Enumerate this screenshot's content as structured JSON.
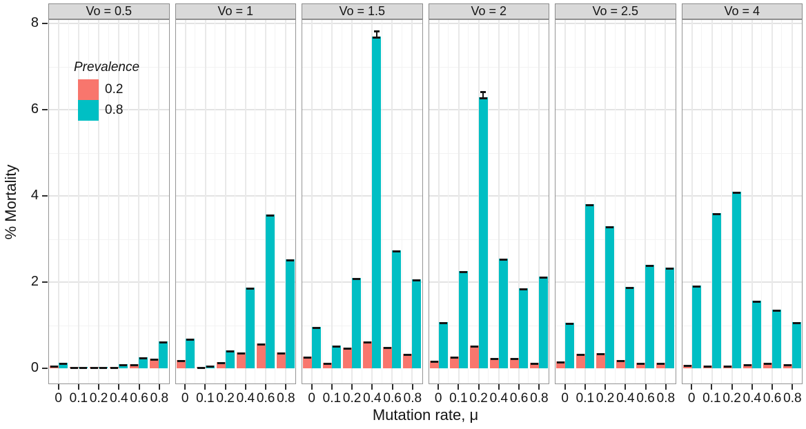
{
  "figure": {
    "y_axis": {
      "title": "% Mortality",
      "tick_labels": [
        "0",
        "2",
        "4",
        "6",
        "8"
      ],
      "tick_values": [
        0,
        2,
        4,
        6,
        8
      ]
    },
    "x_axis": {
      "title": "Mutation rate, μ",
      "tick_labels": [
        "0",
        "0.1",
        "0.2",
        "0.4",
        "0.6",
        "0.8"
      ]
    },
    "legend": {
      "title": "Prevalence",
      "entries": [
        {
          "label": "0.2",
          "color": "#F8766D"
        },
        {
          "label": "0.8",
          "color": "#00BFC4"
        }
      ]
    },
    "colors": {
      "strip_bg": "#D9D9D9",
      "panel_border": "#949494",
      "grid_major": "#E3E3E3",
      "grid_minor": "#F2F2F2",
      "error_bar": "#151515",
      "prevalence_02": "#F8766D",
      "prevalence_08": "#00BFC4"
    }
  },
  "chart_data": {
    "type": "bar",
    "grouping": "dodged",
    "faceted_by": "Vo",
    "title": "",
    "xlabel": "Mutation rate, μ",
    "ylabel": "% Mortality",
    "ylim": [
      0,
      8
    ],
    "y_ticks": [
      0,
      2,
      4,
      6,
      8
    ],
    "grid": true,
    "legend_title": "Prevalence",
    "legend_position": "inside top-left of first panel",
    "error_bars": "small black caps (~±0.05) drawn on top of every bar",
    "categories": [
      "0",
      "0.1",
      "0.2",
      "0.4",
      "0.6",
      "0.8"
    ],
    "facets": [
      {
        "label": "Vo = 0.5",
        "series": [
          {
            "name": "0.2",
            "color": "#F8766D",
            "values": [
              0.06,
              0.02,
              0.02,
              0.03,
              0.09,
              0.22
            ]
          },
          {
            "name": "0.8",
            "color": "#00BFC4",
            "values": [
              0.13,
              0.02,
              0.02,
              0.1,
              0.26,
              0.63
            ]
          }
        ]
      },
      {
        "label": "Vo = 1",
        "series": [
          {
            "name": "0.2",
            "color": "#F8766D",
            "values": [
              0.19,
              0.03,
              0.15,
              0.36,
              0.57,
              0.36
            ]
          },
          {
            "name": "0.8",
            "color": "#00BFC4",
            "values": [
              0.69,
              0.06,
              0.42,
              1.87,
              3.57,
              2.52
            ]
          }
        ]
      },
      {
        "label": "Vo = 1.5",
        "series": [
          {
            "name": "0.2",
            "color": "#F8766D",
            "values": [
              0.27,
              0.13,
              0.48,
              0.63,
              0.5,
              0.33
            ]
          },
          {
            "name": "0.8",
            "color": "#00BFC4",
            "values": [
              0.96,
              0.52,
              2.1,
              7.7,
              2.73,
              2.06
            ]
          }
        ]
      },
      {
        "label": "Vo = 2",
        "series": [
          {
            "name": "0.2",
            "color": "#F8766D",
            "values": [
              0.18,
              0.27,
              0.53,
              0.24,
              0.24,
              0.13
            ]
          },
          {
            "name": "0.8",
            "color": "#00BFC4",
            "values": [
              1.07,
              2.25,
              6.28,
              2.55,
              1.85,
              2.13
            ]
          }
        ]
      },
      {
        "label": "Vo = 2.5",
        "series": [
          {
            "name": "0.2",
            "color": "#F8766D",
            "values": [
              0.16,
              0.34,
              0.35,
              0.19,
              0.12,
              0.12
            ]
          },
          {
            "name": "0.8",
            "color": "#00BFC4",
            "values": [
              1.05,
              3.8,
              3.3,
              1.88,
              2.4,
              2.33
            ]
          }
        ]
      },
      {
        "label": "Vo = 4",
        "series": [
          {
            "name": "0.2",
            "color": "#F8766D",
            "values": [
              0.08,
              0.07,
              0.07,
              0.09,
              0.13,
              0.1
            ]
          },
          {
            "name": "0.8",
            "color": "#00BFC4",
            "values": [
              1.92,
              3.6,
              4.1,
              1.57,
              1.36,
              1.07
            ]
          }
        ]
      }
    ]
  }
}
